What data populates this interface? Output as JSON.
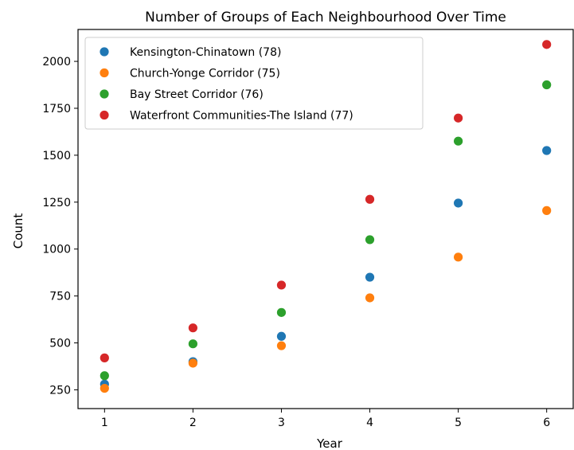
{
  "chart_data": {
    "type": "scatter",
    "title": "Number of Groups of Each Neighbourhood Over Time",
    "xlabel": "Year",
    "ylabel": "Count",
    "x": [
      1,
      2,
      3,
      4,
      5,
      6
    ],
    "xticks": [
      "1",
      "2",
      "3",
      "4",
      "5",
      "6"
    ],
    "yticks": [
      "250",
      "500",
      "750",
      "1000",
      "1250",
      "1500",
      "1750",
      "2000"
    ],
    "xlim": [
      0.7,
      6.3
    ],
    "ylim": [
      150,
      2170
    ],
    "grid": false,
    "legend_position": "top-left",
    "series": [
      {
        "name": "Kensington-Chinatown (78)",
        "color": "#1f77b4",
        "values": [
          280,
          400,
          535,
          850,
          1245,
          1525
        ]
      },
      {
        "name": "Church-Yonge Corridor (75)",
        "color": "#ff7f0e",
        "values": [
          258,
          392,
          485,
          740,
          957,
          1205
        ]
      },
      {
        "name": "Bay Street Corridor (76)",
        "color": "#2ca02c",
        "values": [
          325,
          495,
          662,
          1050,
          1575,
          1875
        ]
      },
      {
        "name": "Waterfront Communities-The Island (77)",
        "color": "#d62728",
        "values": [
          420,
          580,
          808,
          1265,
          1698,
          2090
        ]
      }
    ]
  }
}
